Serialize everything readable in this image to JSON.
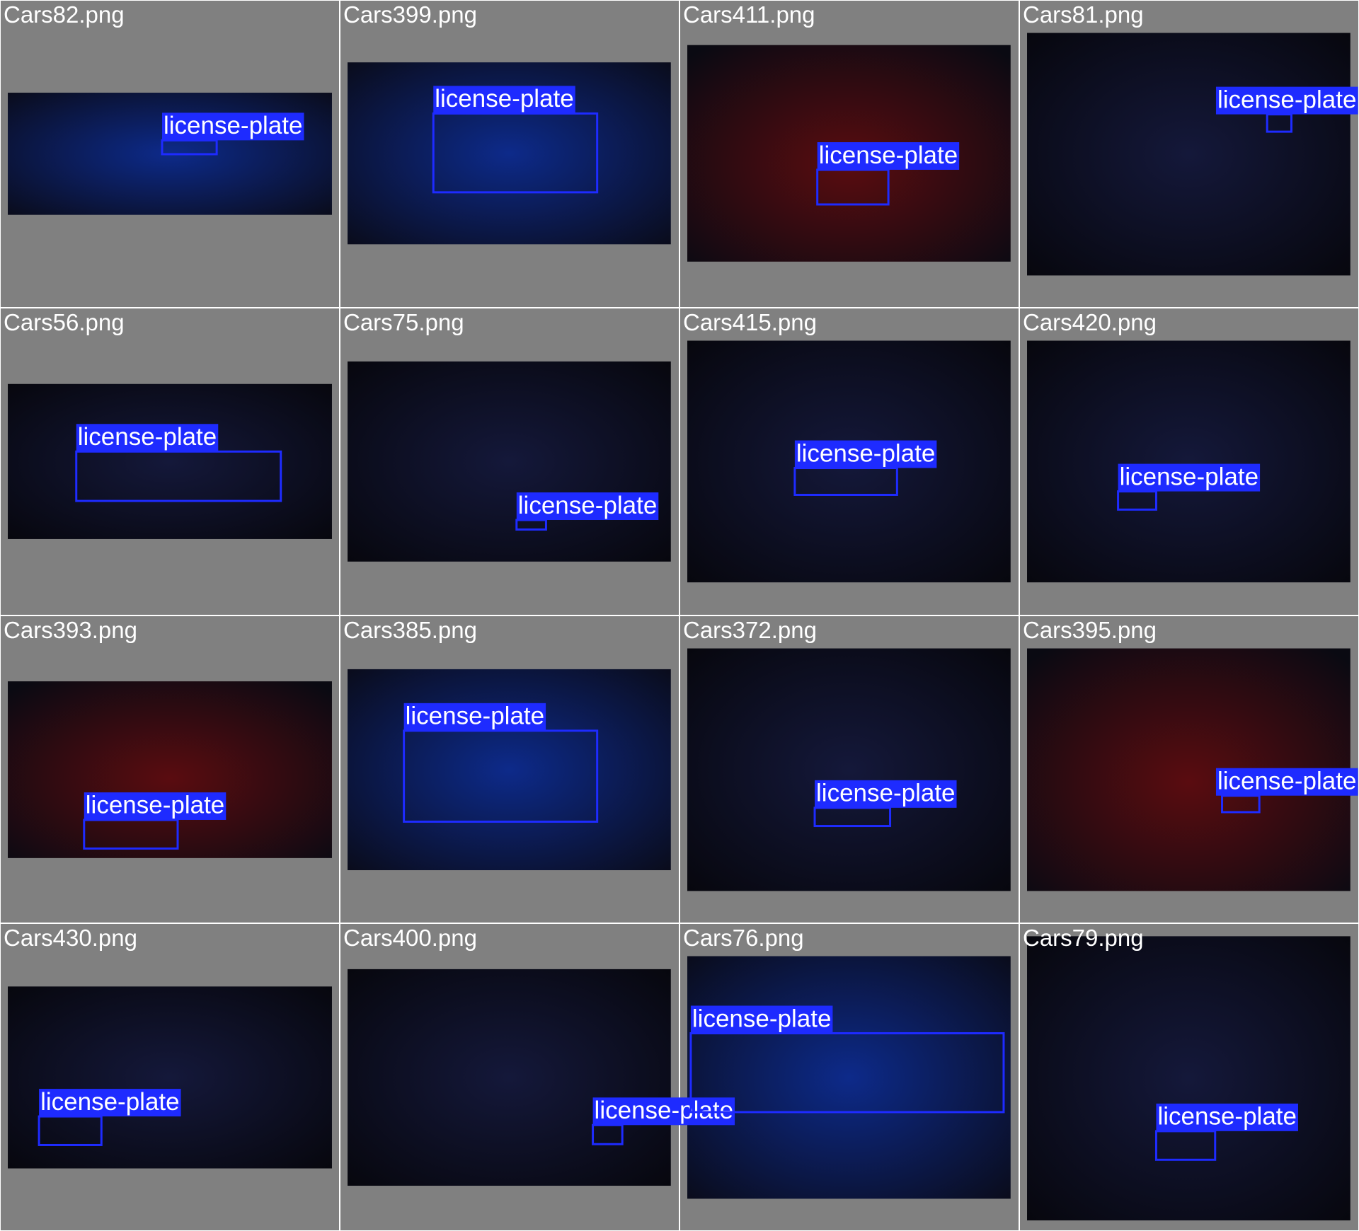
{
  "tiles": [
    {
      "filename": "Cars82.png",
      "boxes": [
        {
          "label": "license-plate"
        }
      ]
    },
    {
      "filename": "Cars399.png",
      "boxes": [
        {
          "label": "license-plate"
        }
      ]
    },
    {
      "filename": "Cars411.png",
      "boxes": [
        {
          "label": "license-plate"
        }
      ]
    },
    {
      "filename": "Cars81.png",
      "boxes": [
        {
          "label": "license-plate"
        }
      ]
    },
    {
      "filename": "Cars56.png",
      "boxes": [
        {
          "label": "license-plate"
        }
      ]
    },
    {
      "filename": "Cars75.png",
      "boxes": [
        {
          "label": "license-plate"
        }
      ]
    },
    {
      "filename": "Cars415.png",
      "boxes": [
        {
          "label": "license-plate"
        }
      ]
    },
    {
      "filename": "Cars420.png",
      "boxes": [
        {
          "label": "license-plate"
        }
      ]
    },
    {
      "filename": "Cars393.png",
      "boxes": [
        {
          "label": "license-plate"
        }
      ]
    },
    {
      "filename": "Cars385.png",
      "boxes": [
        {
          "label": "license-plate"
        }
      ]
    },
    {
      "filename": "Cars372.png",
      "boxes": [
        {
          "label": "license-plate"
        }
      ]
    },
    {
      "filename": "Cars395.png",
      "boxes": [
        {
          "label": "license-plate"
        }
      ]
    },
    {
      "filename": "Cars430.png",
      "boxes": [
        {
          "label": "license-plate"
        }
      ]
    },
    {
      "filename": "Cars400.png",
      "boxes": [
        {
          "label": "license-plate"
        }
      ]
    },
    {
      "filename": "Cars76.png",
      "boxes": [
        {
          "label": "license-plate"
        }
      ]
    },
    {
      "filename": "Cars79.png",
      "boxes": [
        {
          "label": "license-plate"
        }
      ]
    }
  ]
}
